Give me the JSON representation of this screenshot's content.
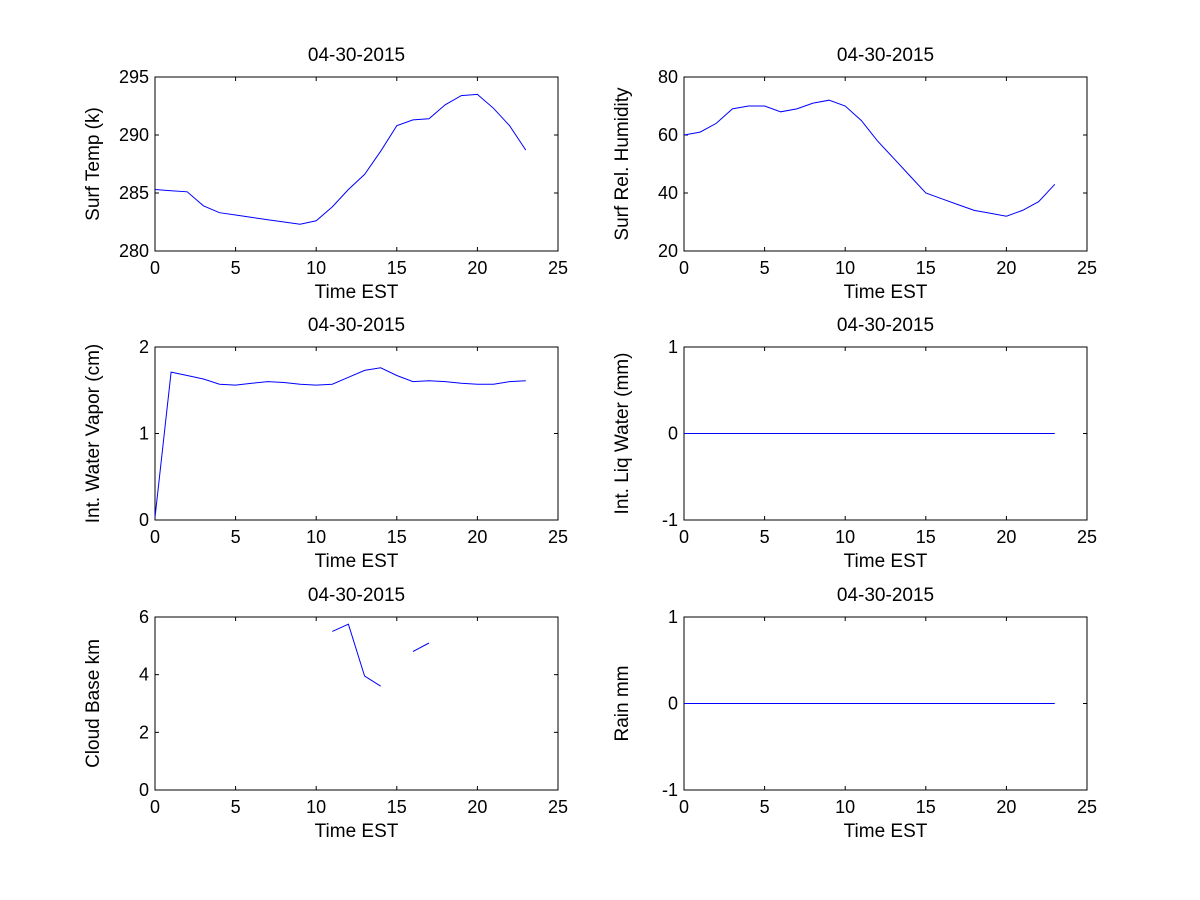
{
  "colors": {
    "line": "#0000ff",
    "axes": "#000000",
    "background": "#ffffff"
  },
  "chart_data": [
    {
      "type": "line",
      "title": "04-30-2015",
      "xlabel": "Time EST",
      "ylabel": "Surf Temp (k)",
      "xlim": [
        0,
        25
      ],
      "ylim": [
        280,
        295
      ],
      "xticks": [
        0,
        5,
        10,
        15,
        20,
        25
      ],
      "yticks": [
        280,
        285,
        290,
        295
      ],
      "grid": false,
      "series": [
        {
          "x": [
            0,
            1,
            2,
            3,
            4,
            5,
            6,
            7,
            8,
            9,
            10,
            11,
            12,
            13,
            14,
            15,
            16,
            17,
            18,
            19,
            20,
            21,
            22,
            23
          ],
          "y": [
            285.3,
            285.2,
            285.1,
            283.9,
            283.3,
            283.1,
            282.9,
            282.7,
            282.5,
            282.3,
            282.6,
            283.8,
            285.3,
            286.6,
            288.6,
            290.8,
            291.3,
            291.4,
            292.6,
            293.4,
            293.5,
            292.3,
            290.8,
            288.7
          ]
        }
      ]
    },
    {
      "type": "line",
      "title": "04-30-2015",
      "xlabel": "Time EST",
      "ylabel": "Surf Rel. Humidity",
      "xlim": [
        0,
        25
      ],
      "ylim": [
        20,
        80
      ],
      "xticks": [
        0,
        5,
        10,
        15,
        20,
        25
      ],
      "yticks": [
        20,
        40,
        60,
        80
      ],
      "grid": false,
      "series": [
        {
          "x": [
            0,
            1,
            2,
            3,
            4,
            5,
            6,
            7,
            8,
            9,
            10,
            11,
            12,
            13,
            14,
            15,
            16,
            17,
            18,
            19,
            20,
            21,
            22,
            23
          ],
          "y": [
            60,
            61,
            64,
            69,
            70,
            70,
            68,
            69,
            71,
            72,
            70,
            65,
            58,
            52,
            46,
            40,
            38,
            36,
            34,
            33,
            32,
            34,
            37,
            43
          ]
        }
      ]
    },
    {
      "type": "line",
      "title": "04-30-2015",
      "xlabel": "Time EST",
      "ylabel": "Int. Water Vapor (cm)",
      "xlim": [
        0,
        25
      ],
      "ylim": [
        0,
        2
      ],
      "xticks": [
        0,
        5,
        10,
        15,
        20,
        25
      ],
      "yticks": [
        0,
        1,
        2
      ],
      "grid": false,
      "series": [
        {
          "x": [
            0,
            1,
            2,
            3,
            4,
            5,
            6,
            7,
            8,
            9,
            10,
            11,
            12,
            13,
            14,
            15,
            16,
            17,
            18,
            19,
            20,
            21,
            22,
            23
          ],
          "y": [
            0.03,
            1.71,
            1.67,
            1.63,
            1.57,
            1.56,
            1.58,
            1.6,
            1.59,
            1.57,
            1.56,
            1.57,
            1.65,
            1.73,
            1.76,
            1.67,
            1.6,
            1.61,
            1.6,
            1.58,
            1.57,
            1.57,
            1.6,
            1.61
          ]
        }
      ]
    },
    {
      "type": "line",
      "title": "04-30-2015",
      "xlabel": "Time EST",
      "ylabel": "Int. Liq Water (mm)",
      "xlim": [
        0,
        25
      ],
      "ylim": [
        -1,
        1
      ],
      "xticks": [
        0,
        5,
        10,
        15,
        20,
        25
      ],
      "yticks": [
        -1,
        0,
        1
      ],
      "grid": false,
      "series": [
        {
          "x": [
            0,
            1,
            2,
            3,
            4,
            5,
            6,
            7,
            8,
            9,
            10,
            11,
            12,
            13,
            14,
            15,
            16,
            17,
            18,
            19,
            20,
            21,
            22,
            23
          ],
          "y": [
            0,
            0,
            0,
            0,
            0,
            0,
            0,
            0,
            0,
            0,
            0,
            0,
            0,
            0,
            0,
            0,
            0,
            0,
            0,
            0,
            0,
            0,
            0,
            0
          ]
        }
      ]
    },
    {
      "type": "line",
      "title": "04-30-2015",
      "xlabel": "Time EST",
      "ylabel": "Cloud Base km",
      "xlim": [
        0,
        25
      ],
      "ylim": [
        0,
        6
      ],
      "xticks": [
        0,
        5,
        10,
        15,
        20,
        25
      ],
      "yticks": [
        0,
        2,
        4,
        6
      ],
      "grid": false,
      "series": [
        {
          "x": [
            11,
            12,
            13,
            14,
            16,
            17
          ],
          "y": [
            5.5,
            5.75,
            3.95,
            3.6,
            4.8,
            5.1
          ],
          "segments": [
            [
              0,
              3
            ],
            [
              4,
              5
            ]
          ]
        }
      ]
    },
    {
      "type": "line",
      "title": "04-30-2015",
      "xlabel": "Time EST",
      "ylabel": "Rain mm",
      "xlim": [
        0,
        25
      ],
      "ylim": [
        -1,
        1
      ],
      "xticks": [
        0,
        5,
        10,
        15,
        20,
        25
      ],
      "yticks": [
        -1,
        0,
        1
      ],
      "grid": false,
      "series": [
        {
          "x": [
            0,
            1,
            2,
            3,
            4,
            5,
            6,
            7,
            8,
            9,
            10,
            11,
            12,
            13,
            14,
            15,
            16,
            17,
            18,
            19,
            20,
            21,
            22,
            23
          ],
          "y": [
            0,
            0,
            0,
            0,
            0,
            0,
            0,
            0,
            0,
            0,
            0,
            0,
            0,
            0,
            0,
            0,
            0,
            0,
            0,
            0,
            0,
            0,
            0,
            0
          ]
        }
      ]
    }
  ]
}
